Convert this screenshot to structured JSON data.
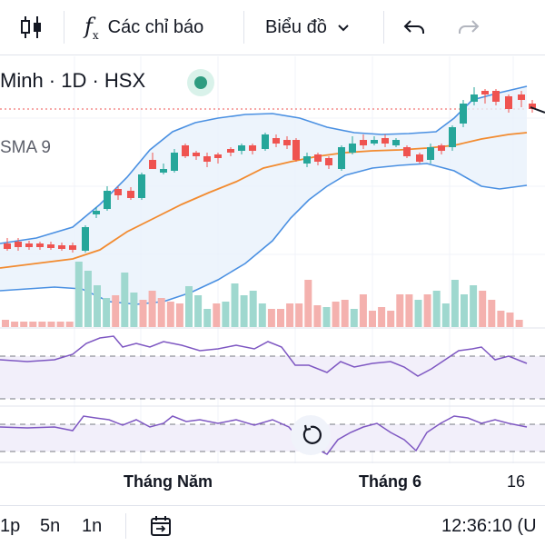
{
  "toolbar": {
    "indicators_label": "Các chỉ báo",
    "chart_type_label": "Biểu đồ"
  },
  "symbol": {
    "legend_text": "Minh · 1D · HSX"
  },
  "indicator_label": "SMA 9",
  "x_axis": {
    "labels": [
      "Tháng Năm",
      "Tháng 6",
      "16"
    ]
  },
  "bottom_bar": {
    "ranges": [
      "1p",
      "5n",
      "1n"
    ],
    "time": "12:36:10 (U"
  },
  "colors": {
    "up": "#26a69a",
    "down": "#ef5350",
    "bollinger": "#4a90e2",
    "sma": "#f28b30",
    "oscillator": "#7e57c2"
  }
}
